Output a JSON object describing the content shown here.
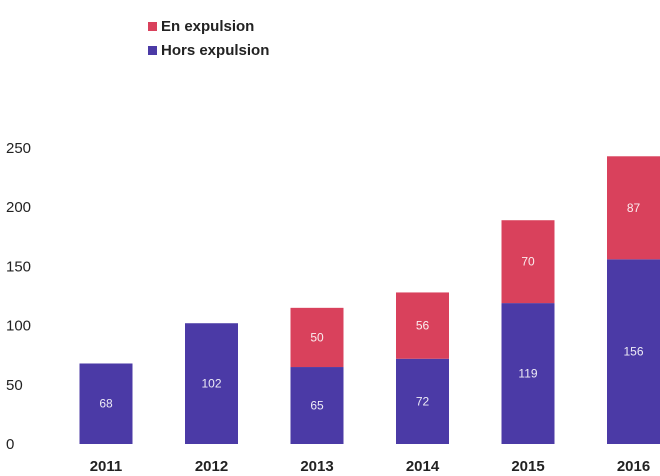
{
  "chart_data": {
    "type": "bar",
    "stacked": true,
    "categories": [
      "2011",
      "2012",
      "2013",
      "2014",
      "2015",
      "2016"
    ],
    "series": [
      {
        "name": "Hors expulsion",
        "color": "#4b3aa6",
        "values": [
          68,
          102,
          65,
          72,
          119,
          156
        ]
      },
      {
        "name": "En expulsion",
        "color": "#d9415c",
        "values": [
          null,
          null,
          50,
          56,
          70,
          87
        ]
      }
    ],
    "data_labels": {
      "Hors expulsion": [
        "68",
        "102",
        "65",
        "72",
        "119",
        "156"
      ],
      "En expulsion": [
        "",
        "",
        "50",
        "56",
        "70",
        "87"
      ]
    },
    "yticks": [
      "0",
      "50",
      "100",
      "150",
      "200",
      "250"
    ],
    "ylim": [
      0,
      250
    ],
    "grid": false,
    "legend": {
      "placement": "top-left",
      "order": [
        "En expulsion",
        "Hors expulsion"
      ]
    }
  }
}
